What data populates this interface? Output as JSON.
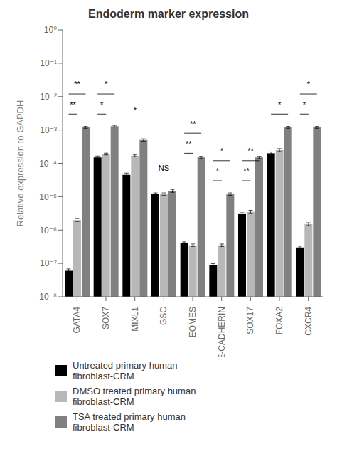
{
  "chart_data": {
    "type": "bar",
    "title": "Endoderm marker expression",
    "y_label": "Relative expression to GAPDH",
    "categories": [
      "GATA4",
      "SOX7",
      "MIXL1",
      "GSC",
      "EOMES",
      "E-CADHERIN",
      "SOX17",
      "FOXA2",
      "CXCR4"
    ],
    "series": [
      {
        "name": "Untreated primary human\nfibroblast-CRM",
        "color": "#000000",
        "values": [
          6e-08,
          0.00015,
          4.5e-05,
          1.2e-05,
          4e-07,
          9e-08,
          3e-06,
          0.0002,
          3e-07
        ],
        "errors": [
          8e-09,
          1.5e-05,
          6e-06,
          1e-06,
          4e-08,
          8e-09,
          3e-07,
          2e-05,
          3e-08
        ]
      },
      {
        "name": "DMSO treated primary human\nfibroblast-CRM",
        "color": "#b8b8b8",
        "values": [
          2e-06,
          0.00019,
          0.00017,
          1.2e-05,
          3.5e-07,
          3.5e-07,
          3.5e-06,
          0.00025,
          1.5e-06
        ],
        "errors": [
          2e-07,
          1.2e-05,
          1.2e-05,
          1e-06,
          3e-08,
          3e-08,
          4e-07,
          2.5e-05,
          1.5e-07
        ]
      },
      {
        "name": "TSA treated primary human\nfibroblast-CRM",
        "color": "#808080",
        "values": [
          0.0012,
          0.0013,
          0.0005,
          1.5e-05,
          0.00015,
          1.2e-05,
          0.00015,
          0.0012,
          0.0012
        ],
        "errors": [
          8e-05,
          8e-05,
          4e-05,
          1.5e-06,
          1.2e-05,
          1e-06,
          1.2e-05,
          8e-05,
          8e-05
        ]
      }
    ],
    "log": "y",
    "ylim": [
      1e-08,
      1
    ],
    "yticks": [
      {
        "value": 1e-08,
        "label": "10⁻⁸"
      },
      {
        "value": 1e-07,
        "label": "10⁻⁷"
      },
      {
        "value": 1e-06,
        "label": "10⁻⁶"
      },
      {
        "value": 1e-05,
        "label": "10⁻⁵"
      },
      {
        "value": 0.0001,
        "label": "10⁻⁴"
      },
      {
        "value": 0.001,
        "label": "10⁻³"
      },
      {
        "value": 0.01,
        "label": "10⁻²"
      },
      {
        "value": 0.1,
        "label": "10⁻¹"
      },
      {
        "value": 1,
        "label": "10⁰"
      }
    ],
    "grid": false,
    "legend": "bottom",
    "annotations": [
      {
        "category": "GATA4",
        "text": "**",
        "y": 0.003,
        "from": "Untreated primary human\nfibroblast-CRM",
        "to": "DMSO treated primary human\nfibroblast-CRM"
      },
      {
        "category": "GATA4",
        "text": "**",
        "y": 0.012,
        "from": "Untreated primary human\nfibroblast-CRM",
        "to": "TSA treated primary human\nfibroblast-CRM"
      },
      {
        "category": "SOX7",
        "text": "*",
        "y": 0.003,
        "from": "Untreated primary human\nfibroblast-CRM",
        "to": "DMSO treated primary human\nfibroblast-CRM"
      },
      {
        "category": "SOX7",
        "text": "*",
        "y": 0.012,
        "from": "Untreated primary human\nfibroblast-CRM",
        "to": "TSA treated primary human\nfibroblast-CRM"
      },
      {
        "category": "MIXL1",
        "text": "*",
        "y": 0.002,
        "from": "Untreated primary human\nfibroblast-CRM",
        "to": "TSA treated primary human\nfibroblast-CRM"
      },
      {
        "category": "GSC",
        "text": "NS",
        "y": 6e-05
      },
      {
        "category": "EOMES",
        "text": "**",
        "y": 0.0002,
        "from": "Untreated primary human\nfibroblast-CRM",
        "to": "DMSO treated primary human\nfibroblast-CRM"
      },
      {
        "category": "EOMES",
        "text": "**",
        "y": 0.0008,
        "from": "Untreated primary human\nfibroblast-CRM",
        "to": "TSA treated primary human\nfibroblast-CRM"
      },
      {
        "category": "E-CADHERIN",
        "text": "*",
        "y": 3e-05,
        "from": "Untreated primary human\nfibroblast-CRM",
        "to": "DMSO treated primary human\nfibroblast-CRM"
      },
      {
        "category": "E-CADHERIN",
        "text": "*",
        "y": 0.00012,
        "from": "Untreated primary human\nfibroblast-CRM",
        "to": "TSA treated primary human\nfibroblast-CRM"
      },
      {
        "category": "SOX17",
        "text": "**",
        "y": 3e-05,
        "from": "Untreated primary human\nfibroblast-CRM",
        "to": "DMSO treated primary human\nfibroblast-CRM"
      },
      {
        "category": "SOX17",
        "text": "**",
        "y": 0.00012,
        "from": "Untreated primary human\nfibroblast-CRM",
        "to": "TSA treated primary human\nfibroblast-CRM"
      },
      {
        "category": "FOXA2",
        "text": "*",
        "y": 0.003,
        "from": "Untreated primary human\nfibroblast-CRM",
        "to": "TSA treated primary human\nfibroblast-CRM"
      },
      {
        "category": "CXCR4",
        "text": "*",
        "y": 0.003,
        "from": "Untreated primary human\nfibroblast-CRM",
        "to": "DMSO treated primary human\nfibroblast-CRM"
      },
      {
        "category": "CXCR4",
        "text": "*",
        "y": 0.012,
        "from": "Untreated primary human\nfibroblast-CRM",
        "to": "TSA treated primary human\nfibroblast-CRM"
      }
    ]
  }
}
